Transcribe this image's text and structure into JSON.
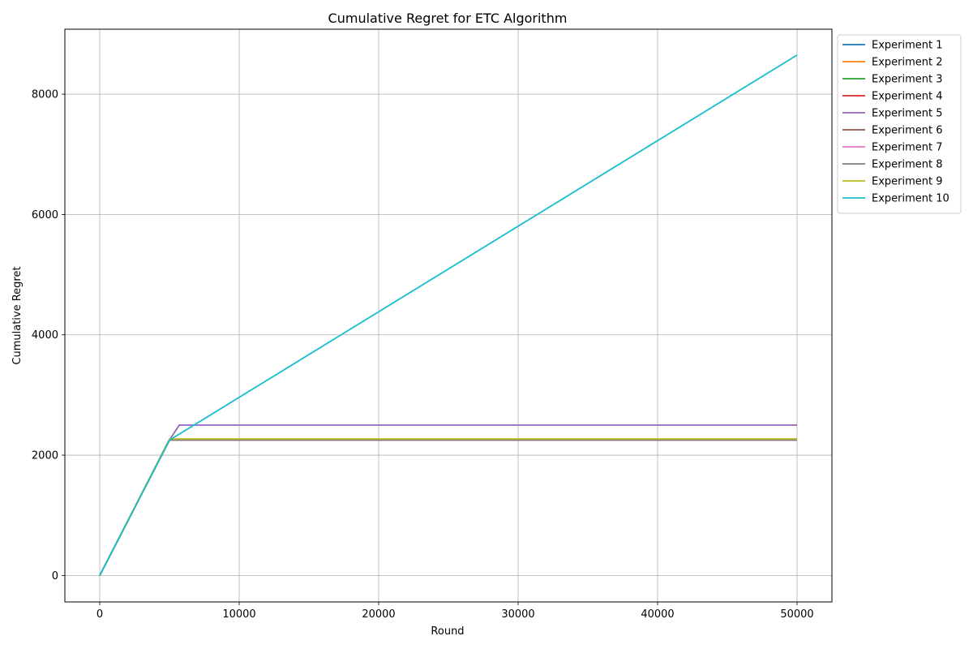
{
  "chart_data": {
    "type": "line",
    "title": "Cumulative Regret for ETC Algorithm",
    "xlabel": "Round",
    "ylabel": "Cumulative Regret",
    "xlim": [
      -2500,
      52500
    ],
    "ylim": [
      -440,
      9080
    ],
    "xticks": [
      0,
      10000,
      20000,
      30000,
      40000,
      50000
    ],
    "yticks": [
      0,
      2000,
      4000,
      6000,
      8000
    ],
    "grid": true,
    "legend_position": "outside-top-right",
    "series": [
      {
        "name": "Experiment 1",
        "color": "#1f77b4",
        "points": [
          [
            0,
            0
          ],
          [
            5000,
            2250
          ],
          [
            50000,
            2250
          ]
        ]
      },
      {
        "name": "Experiment 2",
        "color": "#ff7f0e",
        "points": [
          [
            0,
            0
          ],
          [
            5000,
            2250
          ],
          [
            50000,
            2250
          ]
        ]
      },
      {
        "name": "Experiment 3",
        "color": "#2ca02c",
        "points": [
          [
            0,
            0
          ],
          [
            5000,
            2250
          ],
          [
            50000,
            2250
          ]
        ]
      },
      {
        "name": "Experiment 4",
        "color": "#d62728",
        "points": [
          [
            0,
            0
          ],
          [
            5000,
            2250
          ],
          [
            50000,
            2250
          ]
        ]
      },
      {
        "name": "Experiment 5",
        "color": "#9467bd",
        "points": [
          [
            0,
            0
          ],
          [
            5000,
            2250
          ],
          [
            5700,
            2500
          ],
          [
            50000,
            2500
          ]
        ]
      },
      {
        "name": "Experiment 6",
        "color": "#8c564b",
        "points": [
          [
            0,
            0
          ],
          [
            5000,
            2250
          ],
          [
            50000,
            2250
          ]
        ]
      },
      {
        "name": "Experiment 7",
        "color": "#e377c2",
        "points": [
          [
            0,
            0
          ],
          [
            5000,
            2250
          ],
          [
            50000,
            2250
          ]
        ]
      },
      {
        "name": "Experiment 8",
        "color": "#7f7f7f",
        "points": [
          [
            0,
            0
          ],
          [
            5000,
            2250
          ],
          [
            50000,
            2250
          ]
        ]
      },
      {
        "name": "Experiment 9",
        "color": "#bcbd22",
        "points": [
          [
            0,
            0
          ],
          [
            5000,
            2270
          ],
          [
            50000,
            2270
          ]
        ]
      },
      {
        "name": "Experiment 10",
        "color": "#17becf",
        "points": [
          [
            0,
            0
          ],
          [
            5000,
            2250
          ],
          [
            50000,
            8650
          ]
        ]
      }
    ]
  }
}
